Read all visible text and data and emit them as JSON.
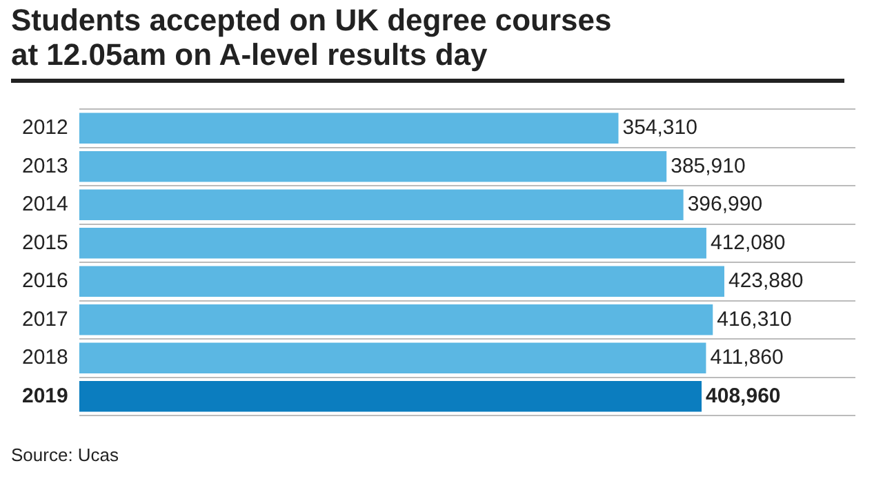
{
  "chart_data": {
    "type": "bar",
    "orientation": "horizontal",
    "title": "Students accepted on UK degree courses\nat 12.05am on A-level results day",
    "categories": [
      "2012",
      "2013",
      "2014",
      "2015",
      "2016",
      "2017",
      "2018",
      "2019"
    ],
    "values": [
      354310,
      385910,
      396990,
      412080,
      423880,
      416310,
      411860,
      408960
    ],
    "colors": [
      "#5bb7e3",
      "#5bb7e3",
      "#5bb7e3",
      "#5bb7e3",
      "#5bb7e3",
      "#5bb7e3",
      "#5bb7e3",
      "#0b7dbf"
    ],
    "value_labels": [
      "354,310",
      "385,910",
      "396,990",
      "412,080",
      "423,880",
      "416,310",
      "411,860",
      "408,960"
    ],
    "xlim": [
      0,
      510000
    ],
    "tick_labels": "y",
    "grid": "y",
    "legend": false,
    "annotations": [
      "Source: Ucas"
    ]
  }
}
